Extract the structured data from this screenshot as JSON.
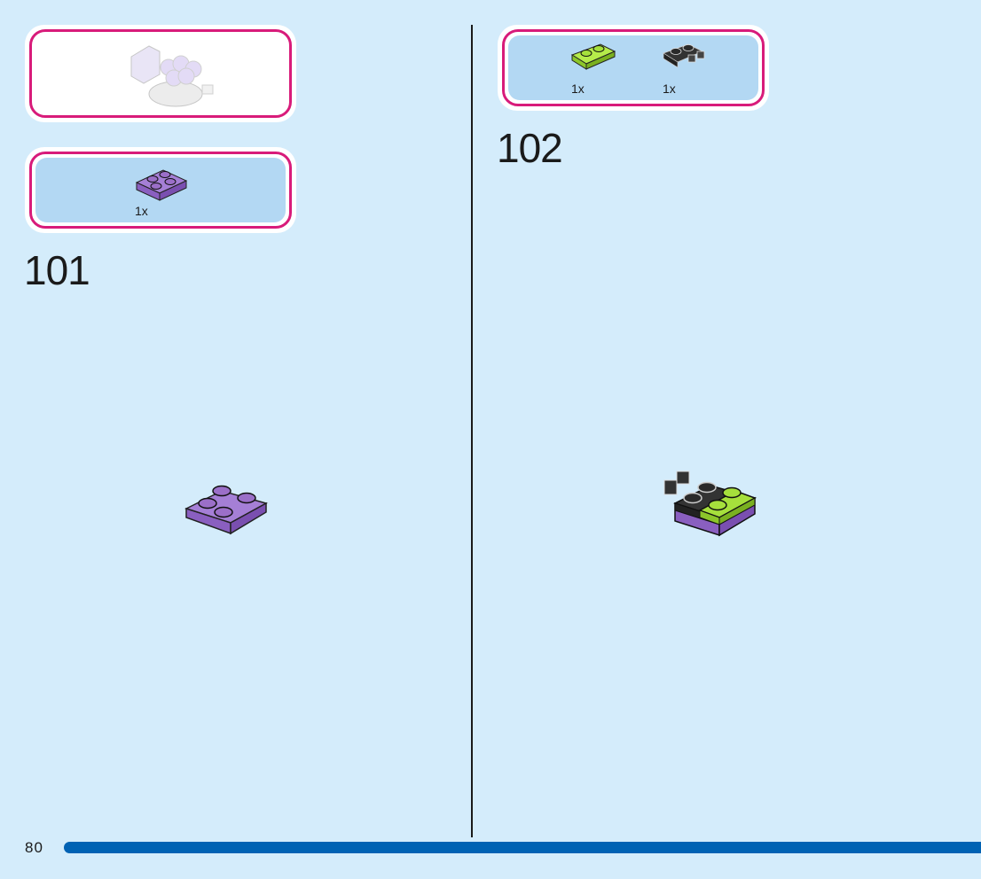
{
  "steps": [
    {
      "number": "101",
      "parts": [
        {
          "qty": "1x",
          "part": "purple-plate-2x2",
          "color": "#9b6fc8"
        }
      ]
    },
    {
      "number": "102",
      "parts": [
        {
          "qty": "1x",
          "part": "lime-plate-1x2",
          "color": "#a6e03c"
        },
        {
          "qty": "1x",
          "part": "black-plate-hinge",
          "color": "#2a2a2a"
        }
      ]
    }
  ],
  "page_number": "80",
  "colors": {
    "background": "#d4ecfb",
    "panel_border": "#d81b7a",
    "parts_fill": "#b3d8f3",
    "footer_bar": "#0062b3"
  }
}
